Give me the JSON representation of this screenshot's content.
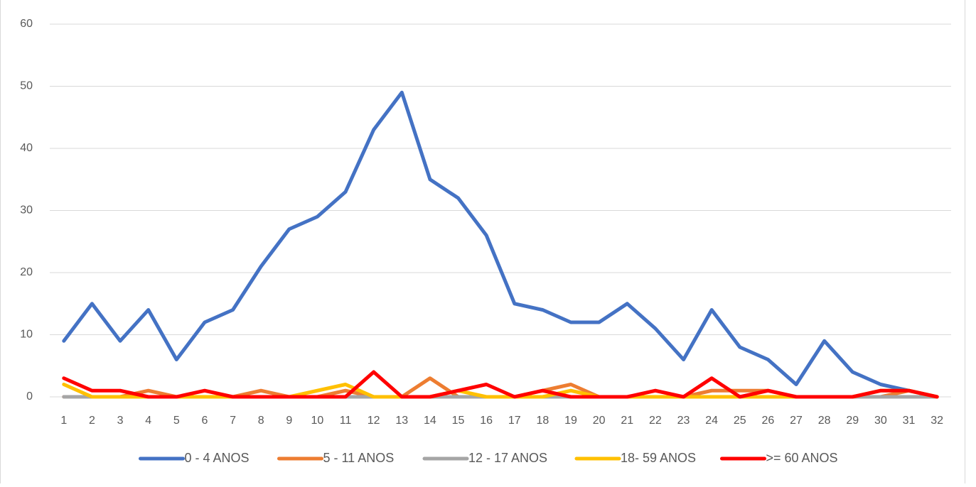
{
  "chart_data": {
    "type": "line",
    "categories": [
      "1",
      "2",
      "3",
      "4",
      "5",
      "6",
      "7",
      "8",
      "9",
      "10",
      "11",
      "12",
      "13",
      "14",
      "15",
      "16",
      "17",
      "18",
      "19",
      "20",
      "21",
      "22",
      "23",
      "24",
      "25",
      "26",
      "27",
      "28",
      "29",
      "30",
      "31",
      "32"
    ],
    "series": [
      {
        "name": "0 - 4 ANOS",
        "color": "#4472c4",
        "values": [
          9,
          15,
          9,
          14,
          6,
          12,
          14,
          21,
          27,
          29,
          33,
          43,
          49,
          35,
          32,
          26,
          15,
          14,
          12,
          12,
          15,
          11,
          6,
          14,
          8,
          6,
          2,
          9,
          4,
          2,
          1,
          0
        ]
      },
      {
        "name": "5 - 11 ANOS",
        "color": "#ed7d31",
        "values": [
          0,
          0,
          0,
          1,
          0,
          0,
          0,
          1,
          0,
          0,
          1,
          0,
          0,
          3,
          0,
          0,
          0,
          1,
          2,
          0,
          0,
          0,
          0,
          1,
          1,
          1,
          0,
          0,
          0,
          0,
          1,
          0
        ]
      },
      {
        "name": "12 - 17 ANOS",
        "color": "#a5a5a5",
        "values": [
          0,
          0,
          0,
          0,
          0,
          0,
          0,
          0,
          0,
          0,
          0,
          0,
          0,
          0,
          0,
          0,
          0,
          0,
          0,
          0,
          0,
          0,
          0,
          0,
          0,
          0,
          0,
          0,
          0,
          0,
          0,
          0
        ]
      },
      {
        "name": "18- 59 ANOS",
        "color": "#ffc000",
        "values": [
          2,
          0,
          0,
          0,
          0,
          0,
          0,
          0,
          0,
          1,
          2,
          0,
          0,
          0,
          1,
          0,
          0,
          0,
          1,
          0,
          0,
          0,
          0,
          0,
          0,
          0,
          0,
          0,
          0,
          1,
          1,
          0
        ]
      },
      {
        "name": ">= 60 ANOS",
        "color": "#ff0000",
        "values": [
          3,
          1,
          1,
          0,
          0,
          1,
          0,
          0,
          0,
          0,
          0,
          4,
          0,
          0,
          1,
          2,
          0,
          1,
          0,
          0,
          0,
          1,
          0,
          3,
          0,
          1,
          0,
          0,
          0,
          1,
          1,
          0
        ]
      }
    ],
    "ylim": [
      0,
      60
    ],
    "yticks": [
      0,
      10,
      20,
      30,
      40,
      50,
      60
    ],
    "grid": true,
    "legend": "bottom"
  }
}
